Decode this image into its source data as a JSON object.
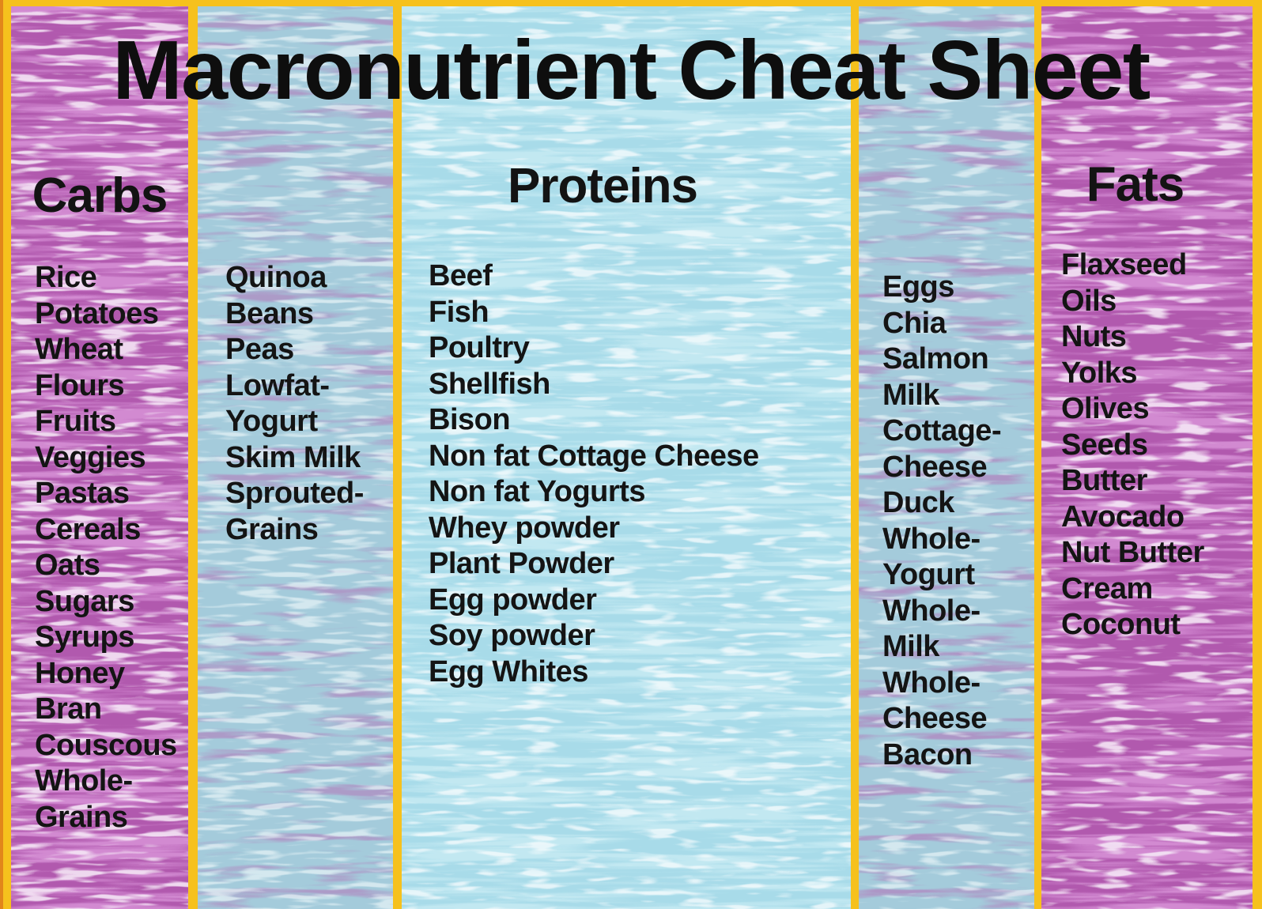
{
  "title": "Macronutrient Cheat Sheet",
  "columns": [
    {
      "id": "carbs",
      "header": "Carbs",
      "items": [
        "Rice",
        "Potatoes",
        "Wheat",
        "Flours",
        "Fruits",
        "Veggies",
        "Pastas",
        "Cereals",
        "Oats",
        "Sugars",
        "Syrups",
        "Honey",
        "Bran",
        "Couscous",
        "Whole-",
        "Grains"
      ]
    },
    {
      "id": "carbs-secondary",
      "header": "",
      "items": [
        "Quinoa",
        "Beans",
        "Peas",
        "Lowfat-",
        "Yogurt",
        "Skim Milk",
        "Sprouted-",
        "Grains"
      ]
    },
    {
      "id": "proteins",
      "header": "Proteins",
      "items": [
        "Beef",
        "Fish",
        "Poultry",
        "Shellfish",
        "Bison",
        "Non fat Cottage Cheese",
        "Non fat Yogurts",
        "Whey powder",
        "Plant Powder",
        "Egg powder",
        "Soy powder",
        "Egg Whites"
      ]
    },
    {
      "id": "proteins-secondary",
      "header": "",
      "items": [
        "Eggs",
        "Chia",
        "Salmon",
        "Milk",
        "Cottage-",
        "Cheese",
        "Duck",
        "Whole-",
        "Yogurt",
        "Whole-",
        "Milk",
        "Whole-",
        "Cheese",
        "Bacon"
      ]
    },
    {
      "id": "fats",
      "header": "Fats",
      "items": [
        "Flaxseed",
        "Oils",
        "Nuts",
        "Yolks",
        "Olives",
        "Seeds",
        "Butter",
        "Avocado",
        "Nut Butter",
        "Cream",
        "Coconut"
      ]
    }
  ],
  "colors": {
    "frame_yellow": "#f6c11d",
    "frame_edge": "#e2861a",
    "purple_base": "#b159ae",
    "purple_streak": "#d893d8",
    "purple_highlight": "#f5e6f6",
    "mix_base": "#a4cbdb",
    "mix_smudge": "#b56cb5",
    "mix_highlight": "#e9f5f8",
    "cyan_base": "#a8dbe9",
    "cyan_streak": "#c9ecf4",
    "cyan_highlight": "#f4fbfd",
    "text": "#141414"
  }
}
